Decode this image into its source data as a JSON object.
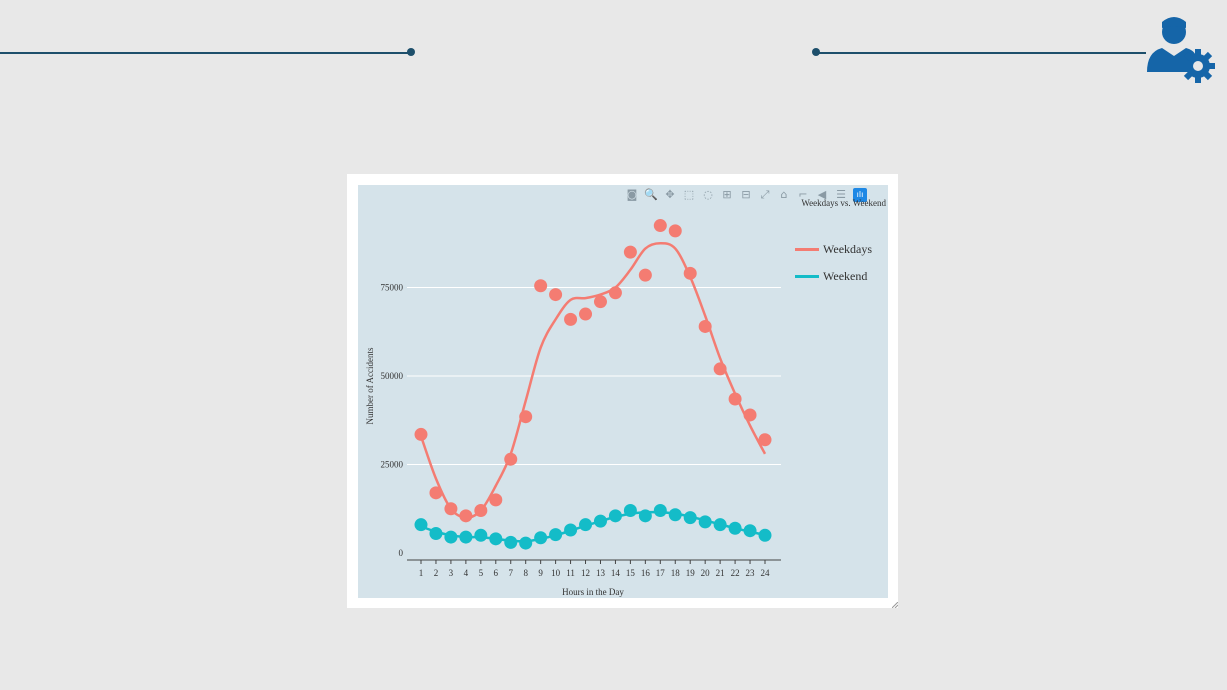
{
  "slide": {
    "accent": "#1d4f6b",
    "logo_icon": "user-gear-icon",
    "logo_color": "#1565a8"
  },
  "modebar": {
    "icons": [
      "camera-icon",
      "zoom-icon",
      "pan-icon",
      "box-select-icon",
      "lasso-icon",
      "zoom-in-icon",
      "zoom-out-icon",
      "autoscale-icon",
      "reset-axes-icon",
      "spike-lines-icon",
      "hover-closest-icon",
      "hover-compare-icon",
      "plotly-logo-icon"
    ]
  },
  "chart_data": {
    "type": "scatter",
    "title": "Weekdays vs. Weekend",
    "xlabel": "Hours in the Day",
    "ylabel": "Number of Accidents",
    "x": [
      1,
      2,
      3,
      4,
      5,
      6,
      7,
      8,
      9,
      10,
      11,
      12,
      13,
      14,
      15,
      16,
      17,
      18,
      19,
      20,
      21,
      22,
      23,
      24
    ],
    "xlim": [
      1,
      24
    ],
    "ylim": [
      0,
      100000
    ],
    "yticks": [
      0,
      25000,
      50000,
      75000
    ],
    "grid": true,
    "legend_position": "top-right",
    "series": [
      {
        "name": "Weekdays",
        "color": "#f47c72",
        "points": [
          33500,
          17000,
          12500,
          10500,
          12000,
          15000,
          26500,
          38500,
          75500,
          73000,
          66000,
          67500,
          71000,
          73500,
          85000,
          78500,
          92500,
          91000,
          79000,
          64000,
          52000,
          43500,
          39000,
          32000
        ],
        "trend": [
          33000,
          21000,
          12500,
          10000,
          12000,
          19000,
          28000,
          43000,
          58000,
          66000,
          71500,
          72000,
          73000,
          75000,
          80000,
          86000,
          87500,
          86000,
          78000,
          67000,
          55000,
          45000,
          36000,
          28000
        ]
      },
      {
        "name": "Weekend",
        "color": "#14bcc8",
        "points": [
          8000,
          5500,
          4500,
          4500,
          5000,
          4000,
          3000,
          2800,
          4300,
          5200,
          6500,
          8000,
          9000,
          10500,
          12000,
          10500,
          12000,
          10800,
          10000,
          8800,
          8000,
          7000,
          6300,
          5000
        ],
        "trend": [
          7500,
          6000,
          5000,
          4500,
          4500,
          4000,
          3500,
          3300,
          4000,
          5000,
          6300,
          7700,
          9000,
          10200,
          11100,
          11500,
          11500,
          11100,
          10300,
          9200,
          8100,
          7000,
          6000,
          5100
        ]
      }
    ]
  }
}
